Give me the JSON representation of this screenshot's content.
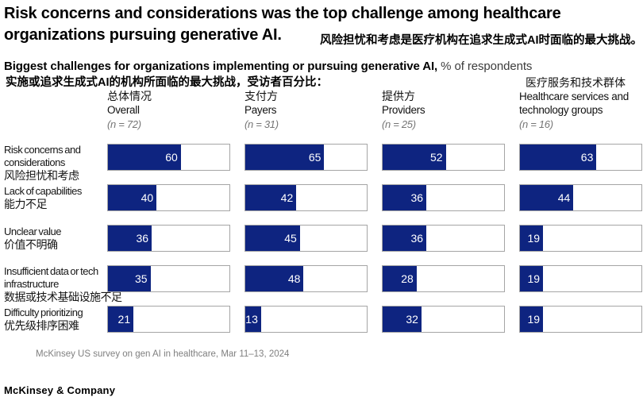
{
  "title": {
    "en": "Risk concerns and considerations was the top challenge among healthcare organizations pursuing generative AI.",
    "zh": "风险担忧和考虑是医疗机构在追求生成式AI时面临的最大挑战。"
  },
  "subtitle": {
    "en_bold": "Biggest challenges for organizations implementing or pursuing generative AI,",
    "en_unit": " % of respondents",
    "zh": "实施或追求生成式AI的机构所面临的最大挑战，受访者百分比："
  },
  "chart_data": {
    "type": "bar",
    "orientation": "horizontal",
    "title": "Biggest challenges for organizations implementing or pursuing generative AI, % of respondents",
    "xlim": [
      0,
      100
    ],
    "bar_color": "#0e2480",
    "track_border_color": "#a5a5a5",
    "value_label_color": "#ffffff",
    "categories": [
      {
        "en": "Risk concerns and considerations",
        "zh": "风险担忧和考虑"
      },
      {
        "en": "Lack of capabilities",
        "zh": "能力不足"
      },
      {
        "en": "Unclear value",
        "zh": "价值不明确"
      },
      {
        "en": "Insufficient data or tech infrastructure",
        "zh": "数据或技术基础设施不足"
      },
      {
        "en": "Difficulty prioritizing",
        "zh": "优先级排序困难"
      }
    ],
    "series": [
      {
        "name": "Overall",
        "zh": "总体情况",
        "n": "(n = 72)",
        "values": [
          60,
          40,
          36,
          35,
          21
        ]
      },
      {
        "name": "Payers",
        "zh": "支付方",
        "n": "(n = 31)",
        "values": [
          65,
          42,
          45,
          48,
          13
        ]
      },
      {
        "name": "Providers",
        "zh": "提供方",
        "n": "(n = 25)",
        "values": [
          52,
          36,
          36,
          28,
          32
        ]
      },
      {
        "name": "Healthcare services and technology groups",
        "zh": "医疗服务和技术群体",
        "n": "(n = 16)",
        "values": [
          63,
          44,
          19,
          19,
          19
        ]
      }
    ]
  },
  "footnote": "McKinsey US survey on gen AI in healthcare, Mar 11–13, 2024",
  "logo": "McKinsey & Company"
}
